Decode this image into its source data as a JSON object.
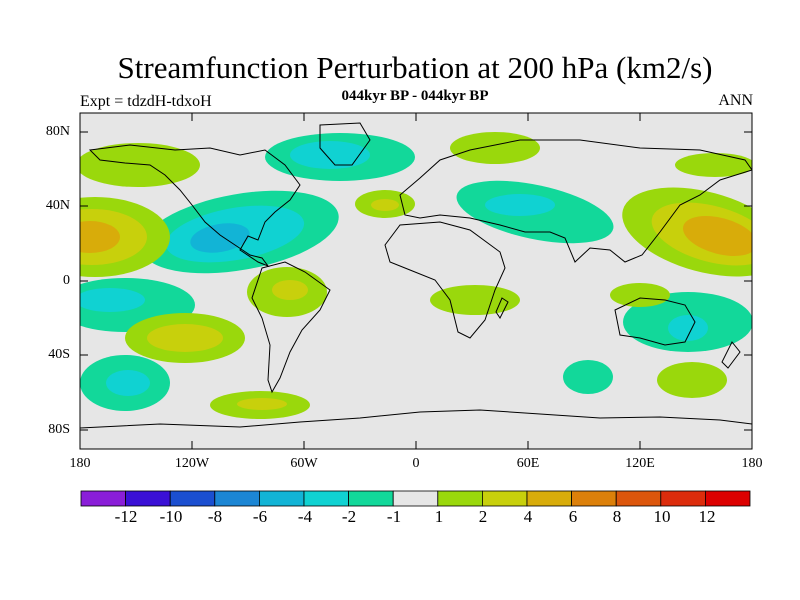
{
  "map": {
    "title": "Streamfunction Perturbation at 200 hPa (km2/s)",
    "subtitle": "044kyr BP - 044kyr BP",
    "left_label": "Expt = tdzdH-tdxoH",
    "right_label": "ANN",
    "lat_labels": [
      "80N",
      "40N",
      "0",
      "40S",
      "80S"
    ],
    "lon_labels": [
      "180",
      "120W",
      "60W",
      "0",
      "60E",
      "120E",
      "180"
    ]
  },
  "colorbar": {
    "labels": [
      "-12",
      "-10",
      "-8",
      "-6",
      "-4",
      "-2",
      "-1",
      "1",
      "2",
      "4",
      "6",
      "8",
      "10",
      "12"
    ],
    "colors": [
      "#8a1ed8",
      "#3a10d6",
      "#1b4fd0",
      "#1c86d4",
      "#12b4d6",
      "#10d2d2",
      "#12d89a",
      "#e6e6e6",
      "#9ad80c",
      "#c8d00c",
      "#d8ac0a",
      "#dc800a",
      "#dc560c",
      "#dc2c0c",
      "#dc0000"
    ]
  },
  "colors": {
    "background": "#e6e6e6",
    "neg1": "#12d89a",
    "neg2": "#10d2d2",
    "neg4": "#12b4d6",
    "pos1": "#9ad80c",
    "pos2": "#c8d00c",
    "pos4": "#d8ac0a"
  }
}
